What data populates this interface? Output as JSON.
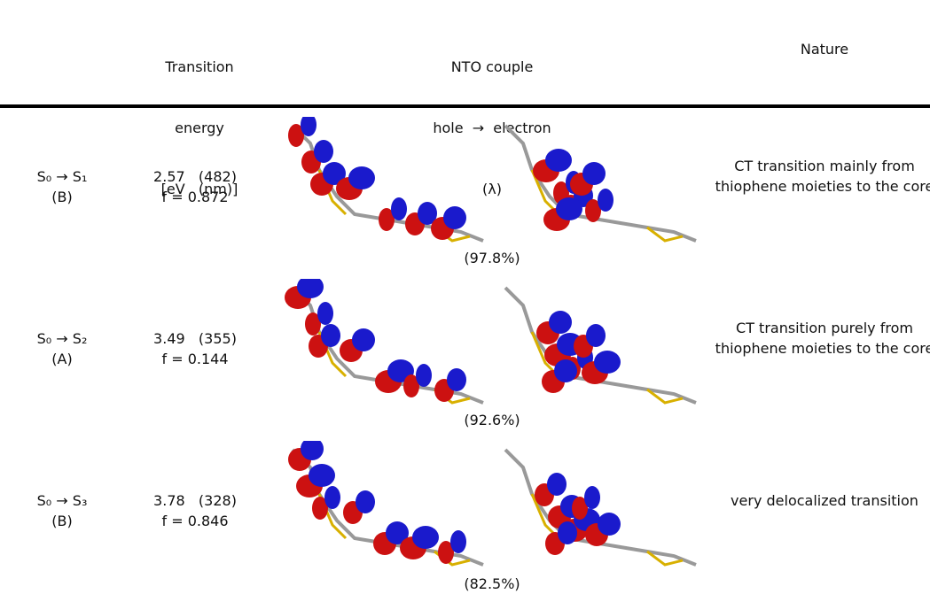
{
  "header": {
    "energy": [
      "Transition",
      "energy",
      "[eV   (nm)]"
    ],
    "nto": [
      "NTO couple",
      "hole  →  electron",
      "(λ)"
    ],
    "nature": "Nature"
  },
  "rows": [
    {
      "state": "S₀ → S₁",
      "sym": "(B)",
      "energy": "2.57   (482)",
      "f": "f = 0.872",
      "lambda": "(97.8%)",
      "nature": "CT transition mainly from thiophene moieties to the core"
    },
    {
      "state": "S₀ → S₂",
      "sym": "(A)",
      "energy": "3.49   (355)",
      "f": "f = 0.144",
      "lambda": "(92.6%)",
      "nature": "CT transition purely from thiophene moieties to the core"
    },
    {
      "state": "S₀ → S₃",
      "sym": "(B)",
      "energy": "3.78   (328)",
      "f": "f = 0.846",
      "lambda": "(82.5%)",
      "nature": "very delocalized transition"
    }
  ]
}
